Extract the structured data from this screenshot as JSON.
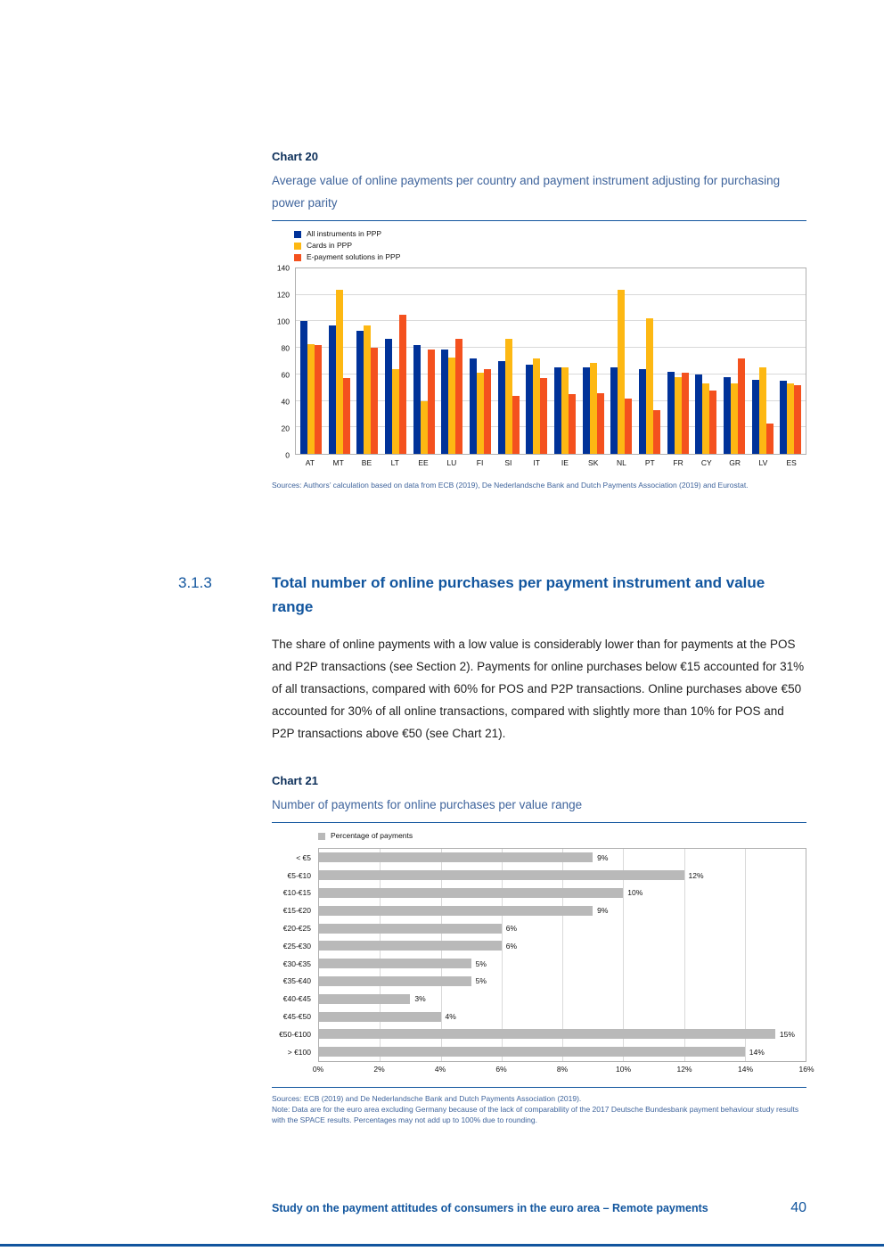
{
  "colors": {
    "accent": "#11559e",
    "chart_label": "#0b2e59",
    "chart_subtitle": "#3f649c",
    "body_text": "#222222",
    "grid": "#d9d9d9",
    "plot_border": "#b0b0b0"
  },
  "chart20": {
    "label": "Chart 20",
    "title": "Average value of online payments per country and payment instrument adjusting for purchasing power parity",
    "sources": "Sources: Authors’ calculation based on data from ECB (2019), De Nederlandsche Bank and Dutch Payments Association (2019) and Eurostat."
  },
  "section": {
    "number": "3.1.3",
    "title": "Total number of online purchases per payment instrument and value range",
    "paragraph": "The share of online payments with a low value is considerably lower than for payments at the POS and P2P transactions (see Section 2). Payments for online purchases below €15 accounted for 31% of all transactions, compared with 60% for POS and P2P transactions. Online purchases above €50 accounted for 30% of all online transactions, compared with slightly more than 10% for POS and P2P transactions above €50 (see Chart 21)."
  },
  "chart21": {
    "label": "Chart 21",
    "title": "Number of payments for online purchases per value range",
    "sources": "Sources: ECB (2019) and De Nederlandsche Bank and Dutch Payments Association (2019).",
    "note": "Note: Data are for the euro area excluding Germany because of the lack of comparability of the 2017 Deutsche Bundesbank payment behaviour study results with the SPACE results. Percentages may not add up to 100% due to rounding."
  },
  "footer": {
    "text": "Study on the payment attitudes of consumers in the euro area – Remote payments",
    "page_number": "40"
  },
  "chart_data": [
    {
      "type": "bar",
      "orientation": "vertical",
      "title": "Average value of online payments per country and payment instrument adjusting for purchasing power parity",
      "categories": [
        "AT",
        "MT",
        "BE",
        "LT",
        "EE",
        "LU",
        "FI",
        "SI",
        "IT",
        "IE",
        "SK",
        "NL",
        "PT",
        "FR",
        "CY",
        "GR",
        "LV",
        "ES"
      ],
      "series": [
        {
          "name": "All instruments in PPP",
          "color": "#003299",
          "values": [
            100,
            97,
            93,
            87,
            82,
            79,
            72,
            70,
            67,
            65,
            65,
            65,
            64,
            62,
            60,
            58,
            56,
            55
          ]
        },
        {
          "name": "Cards in PPP",
          "color": "#fdb813",
          "values": [
            83,
            124,
            97,
            64,
            40,
            73,
            61,
            87,
            72,
            65,
            69,
            124,
            102,
            58,
            53,
            53,
            65,
            53
          ]
        },
        {
          "name": "E-payment solutions in PPP",
          "color": "#f4511e",
          "values": [
            82,
            57,
            80,
            105,
            79,
            87,
            64,
            44,
            57,
            45,
            46,
            42,
            33,
            61,
            48,
            72,
            23,
            52
          ]
        }
      ],
      "ylim": [
        0,
        140
      ],
      "ytick_step": 20,
      "grid": true,
      "legend_position": "top-left"
    },
    {
      "type": "bar",
      "orientation": "horizontal",
      "title": "Number of payments for online purchases per value range",
      "legend": "Percentage of payments",
      "bar_color": "#b9b9b9",
      "categories": [
        "< €5",
        "€5-€10",
        "€10-€15",
        "€15-€20",
        "€20-€25",
        "€25-€30",
        "€30-€35",
        "€35-€40",
        "€40-€45",
        "€45-€50",
        "€50-€100",
        "> €100"
      ],
      "values": [
        9,
        12,
        10,
        9,
        6,
        6,
        5,
        5,
        3,
        4,
        15,
        14
      ],
      "labels": [
        "9%",
        "12%",
        "10%",
        "9%",
        "6%",
        "6%",
        "5%",
        "5%",
        "3%",
        "4%",
        "15%",
        "14%"
      ],
      "xlim": [
        0,
        16
      ],
      "xtick_step": 2,
      "xtick_labels": [
        "0%",
        "2%",
        "4%",
        "6%",
        "8%",
        "10%",
        "12%",
        "14%",
        "16%"
      ],
      "grid": true,
      "legend_position": "top-left"
    }
  ]
}
